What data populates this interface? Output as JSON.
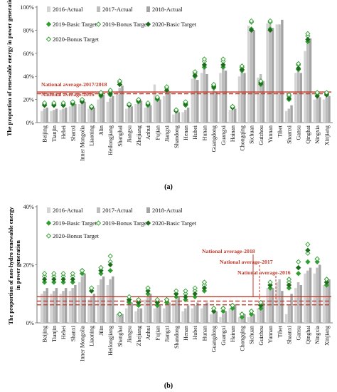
{
  "chart_data": [
    {
      "panel_label": "(a)",
      "type": "bar",
      "ylabel": "The proportion of renewable energy in power generation",
      "ylim": [
        0,
        100
      ],
      "yticks": [
        "0%",
        "20%",
        "40%",
        "60%",
        "80%",
        "100%"
      ],
      "categories": [
        "Beijing",
        "Tianjin",
        "Hebei",
        "Shanxi",
        "Inner Mongolia",
        "Liaoning",
        "Jilin",
        "Heilongjiang",
        "Shanghai",
        "Jiangsu",
        "Zhejiang",
        "Anhui",
        "Fujian",
        "Jiangxi",
        "Shandong",
        "Henan",
        "Hubei",
        "Hunan",
        "Guangdong",
        "Guangxi",
        "Hainan",
        "Chongqing",
        "Sichuan",
        "Guizhou",
        "Yunnan",
        "Tibet",
        "Shaanxi",
        "Gansu",
        "Qinghai",
        "Ningxia",
        "Xinjiang"
      ],
      "series": [
        {
          "name": "2016-Actual",
          "kind": "bar",
          "color": "#d4d4d4",
          "values": [
            10,
            10,
            11,
            14,
            16,
            12,
            20,
            18,
            27,
            12,
            16,
            13,
            33,
            23,
            7,
            9,
            38,
            43,
            25,
            43,
            11,
            40,
            84,
            39,
            86,
            85,
            10,
            43,
            62,
            20,
            20
          ]
        },
        {
          "name": "2017-Actual",
          "kind": "bar",
          "color": "#bcbcbc",
          "values": [
            12,
            11,
            12,
            15,
            17,
            12,
            22,
            21,
            30,
            13,
            18,
            14,
            22,
            26,
            8,
            11,
            40,
            47,
            28,
            47,
            11,
            44,
            82,
            42,
            85,
            85,
            12,
            45,
            68,
            21,
            22
          ]
        },
        {
          "name": "2018-Actual",
          "kind": "bar",
          "color": "#a4a4a4",
          "values": [
            13,
            12,
            13,
            16,
            18,
            13,
            24,
            23,
            32,
            14,
            19,
            15,
            20,
            27,
            9,
            13,
            37,
            42,
            27,
            45,
            12,
            43,
            80,
            36,
            82,
            89,
            15,
            43,
            73,
            22,
            23
          ]
        },
        {
          "name": "2019-Basic Target",
          "kind": "marker",
          "shape": "diamond-filled",
          "color": "#2e9e2e",
          "values": [
            15,
            15,
            15,
            16,
            18,
            13,
            23,
            24,
            33,
            15,
            18,
            15,
            20,
            28,
            10,
            15,
            40,
            48,
            30,
            48,
            13,
            45,
            81,
            33,
            81,
            null,
            20,
            46,
            70,
            23,
            24
          ]
        },
        {
          "name": "2019-Bonus Target",
          "kind": "marker",
          "shape": "diamond-open",
          "color": "#2e9e2e",
          "values": [
            16,
            16,
            16,
            17,
            19,
            14,
            25,
            27,
            35,
            16,
            19,
            16,
            21,
            30,
            11,
            17,
            43,
            53,
            32,
            53,
            14,
            48,
            87,
            35,
            87,
            null,
            23,
            50,
            75,
            25,
            25
          ]
        },
        {
          "name": "2020-Basic Target",
          "kind": "marker",
          "shape": "diamond-filled",
          "color": "#1f6b1f",
          "values": [
            15,
            15,
            15,
            17,
            18,
            13,
            24,
            25,
            33,
            15,
            19,
            16,
            21,
            28,
            10,
            16,
            41,
            50,
            31,
            50,
            13,
            46,
            80,
            34,
            80,
            null,
            21,
            47,
            72,
            23,
            24
          ]
        },
        {
          "name": "2020-Bonus Target",
          "kind": "marker",
          "shape": "diamond-open",
          "color": "#2e9e2e",
          "values": [
            17,
            17,
            17,
            18,
            20,
            14,
            26,
            28,
            36,
            16,
            20,
            17,
            22,
            31,
            11,
            18,
            44,
            55,
            33,
            55,
            14,
            49,
            88,
            36,
            88,
            null,
            24,
            51,
            77,
            26,
            26
          ]
        }
      ],
      "reference_lines": [
        {
          "label": "National average-2017/2018",
          "value": 26.5,
          "color": "#c0392b",
          "style": "solid"
        },
        {
          "label": "National average-2016",
          "value": 25,
          "color": "#c0392b",
          "style": "dashed"
        }
      ]
    },
    {
      "panel_label": "(b)",
      "type": "bar",
      "ylabel": "The proportion of non-hydro renewable energy in power generation",
      "ylim": [
        0,
        40
      ],
      "yticks": [
        "0%",
        "20%",
        "40%"
      ],
      "categories": [
        "Beijing",
        "Tianjin",
        "Hebei",
        "Shanxi",
        "Inner Mongolia",
        "Liaoning",
        "Jilin",
        "Heilongjiang",
        "Shanghai",
        "Jiangsu",
        "Zhejiang",
        "Anhui",
        "Fujian",
        "Jiangxi",
        "Shandong",
        "Henan",
        "Hubei",
        "Hunan",
        "Guangdong",
        "Guangxi",
        "Hainan",
        "Chongqing",
        "Sichuan",
        "Guizhou",
        "Yunnan",
        "Tibet",
        "Shaanxi",
        "Gansu",
        "Qinghai",
        "Ningxia",
        "Xinjiang"
      ],
      "series": [
        {
          "name": "2016-Actual",
          "kind": "bar",
          "color": "#d4d4d4",
          "values": [
            10,
            10,
            10,
            11,
            14,
            8,
            13,
            13,
            3,
            5,
            4,
            8,
            5,
            5,
            7,
            4,
            5,
            5,
            3,
            2,
            5,
            2,
            2,
            5,
            12,
            14,
            3,
            12,
            17,
            17,
            13
          ]
        },
        {
          "name": "2017-Actual",
          "kind": "bar",
          "color": "#bcbcbc",
          "values": [
            11,
            11,
            11,
            12,
            16,
            9,
            15,
            15,
            3,
            6,
            5,
            9,
            6,
            6,
            8,
            5,
            6,
            6,
            4,
            3,
            6,
            2,
            3,
            6,
            13,
            15,
            6,
            14,
            18,
            19,
            14
          ]
        },
        {
          "name": "2018-Actual",
          "kind": "bar",
          "color": "#a4a4a4",
          "values": [
            12,
            12,
            12,
            13,
            17,
            10,
            16,
            16,
            3,
            7,
            5,
            10,
            6,
            7,
            9,
            6,
            7,
            7,
            4,
            4,
            6,
            3,
            3,
            7,
            12,
            11,
            10,
            13,
            19,
            20,
            15
          ]
        },
        {
          "name": "2019-Basic Target",
          "kind": "marker",
          "shape": "diamond-filled",
          "color": "#2e9e2e",
          "values": [
            14,
            14,
            14,
            14,
            17,
            11,
            17,
            18,
            3,
            7,
            6,
            10,
            6,
            7,
            9,
            8,
            9,
            11,
            4,
            4,
            5,
            2,
            3,
            5,
            12,
            null,
            12,
            17,
            21,
            21,
            13
          ]
        },
        {
          "name": "2019-Bonus Target",
          "kind": "marker",
          "shape": "diamond-open",
          "color": "#2e9e2e",
          "values": [
            16,
            16,
            16,
            16,
            18,
            12,
            19,
            21,
            3,
            8,
            7,
            12,
            7,
            8,
            10,
            10,
            11,
            13,
            5,
            5,
            6,
            3,
            4,
            6,
            13,
            null,
            14,
            19,
            24,
            22,
            15
          ]
        },
        {
          "name": "2020-Basic Target",
          "kind": "marker",
          "shape": "diamond-filled",
          "color": "#1f6b1f",
          "values": [
            15,
            15,
            15,
            15,
            18,
            11,
            18,
            20,
            3,
            8,
            7,
            11,
            7,
            8,
            10,
            9,
            10,
            12,
            4,
            5,
            6,
            3,
            4,
            6,
            13,
            null,
            13,
            19,
            25,
            22,
            14
          ]
        },
        {
          "name": "2020-Bonus Target",
          "kind": "marker",
          "shape": "diamond-open",
          "color": "#2e9e2e",
          "values": [
            17,
            17,
            17,
            17,
            18,
            12,
            19,
            23,
            3,
            9,
            8,
            12,
            8,
            8,
            11,
            11,
            12,
            14,
            5,
            5,
            6,
            3,
            4,
            7,
            14,
            null,
            15,
            21,
            27,
            22,
            15
          ]
        }
      ],
      "reference_lines": [
        {
          "label": "National average-2018",
          "value": 9,
          "color": "#c0392b",
          "style": "solid"
        },
        {
          "label": "National average-2017",
          "value": 7.5,
          "color": "#c0392b",
          "style": "dashed"
        },
        {
          "label": "National average-2016",
          "value": 6.2,
          "color": "#c0392b",
          "style": "dashed"
        }
      ]
    }
  ]
}
